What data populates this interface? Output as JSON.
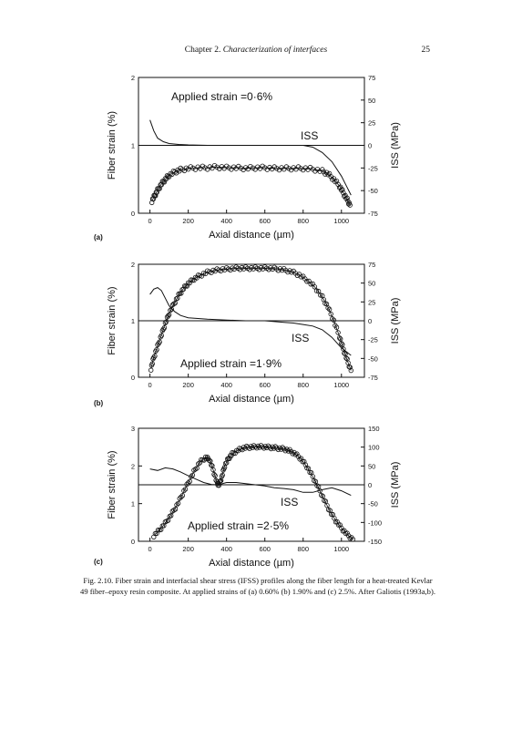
{
  "header": {
    "chapter_prefix": "Chapter 2. ",
    "chapter_title": "Characterization of interfaces",
    "page_number": "25"
  },
  "caption": "Fig. 2.10. Fiber strain and interfacial shear stress (IFSS) profiles along the fiber length for a heat-treated Kevlar 49 fiber–epoxy resin composite. At applied strains of (a) 0.60% (b) 1.90% and (c) 2.5%. After Galiotis (1993a,b).",
  "chart_data": [
    {
      "type": "line",
      "panel_label": "(a)",
      "annotation": "Applied strain =0·6%",
      "iss_label": "ISS",
      "xlabel": "Axial distance (µm)",
      "ylabel": "Fiber strain (%)",
      "y2label": "ISS (MPa)",
      "xlim": [
        -60,
        1120
      ],
      "ylim": [
        0,
        2
      ],
      "y2lim": [
        -75,
        75
      ],
      "x_ticks": [
        "0",
        "200",
        "400",
        "600",
        "800",
        "1000"
      ],
      "y_ticks": [
        "0",
        "1",
        "2"
      ],
      "y2_ticks": [
        "75",
        "50",
        "25",
        "0",
        "-25",
        "-50",
        "-75"
      ],
      "reference_line_y": 1,
      "series": [
        {
          "name": "Fiber strain",
          "style": "markers",
          "x": [
            10,
            25,
            40,
            60,
            80,
            100,
            130,
            160,
            200,
            250,
            300,
            350,
            400,
            450,
            500,
            550,
            600,
            650,
            700,
            750,
            800,
            850,
            900,
            930,
            960,
            990,
            1010,
            1030,
            1045
          ],
          "y": [
            0.18,
            0.26,
            0.34,
            0.43,
            0.5,
            0.56,
            0.61,
            0.64,
            0.66,
            0.67,
            0.67,
            0.68,
            0.67,
            0.67,
            0.66,
            0.67,
            0.67,
            0.66,
            0.66,
            0.66,
            0.66,
            0.65,
            0.62,
            0.58,
            0.5,
            0.4,
            0.3,
            0.2,
            0.12
          ]
        },
        {
          "name": "ISS",
          "style": "line",
          "x": [
            0,
            20,
            40,
            70,
            100,
            150,
            200,
            300,
            400,
            500,
            600,
            700,
            800,
            850,
            900,
            950,
            1000,
            1050
          ],
          "y": [
            28,
            16,
            8,
            4,
            2,
            1,
            0.5,
            0,
            0,
            0,
            0,
            0,
            0,
            -2,
            -8,
            -18,
            -34,
            -55
          ]
        }
      ]
    },
    {
      "type": "line",
      "panel_label": "(b)",
      "annotation": "Applied strain =1·9%",
      "iss_label": "ISS",
      "xlabel": "Axial distance (µm)",
      "ylabel": "Fiber strain (%)",
      "y2label": "ISS (MPa)",
      "xlim": [
        -60,
        1120
      ],
      "ylim": [
        0,
        2
      ],
      "y2lim": [
        -75,
        75
      ],
      "x_ticks": [
        "0",
        "200",
        "400",
        "600",
        "800",
        "1000"
      ],
      "y_ticks": [
        "0",
        "1",
        "2"
      ],
      "y2_ticks": [
        "75",
        "50",
        "25",
        "0",
        "-25",
        "-50",
        "-75"
      ],
      "reference_line_y": 1,
      "series": [
        {
          "name": "Fiber strain",
          "style": "markers",
          "x": [
            5,
            20,
            40,
            60,
            80,
            100,
            125,
            150,
            175,
            200,
            230,
            260,
            300,
            340,
            380,
            420,
            460,
            500,
            540,
            580,
            620,
            660,
            700,
            740,
            780,
            820,
            860,
            900,
            930,
            960,
            990,
            1010,
            1030,
            1050
          ],
          "y": [
            0.15,
            0.35,
            0.55,
            0.75,
            0.95,
            1.13,
            1.3,
            1.45,
            1.57,
            1.66,
            1.74,
            1.8,
            1.86,
            1.89,
            1.91,
            1.92,
            1.93,
            1.93,
            1.93,
            1.93,
            1.93,
            1.92,
            1.9,
            1.87,
            1.81,
            1.72,
            1.6,
            1.42,
            1.24,
            1.0,
            0.72,
            0.5,
            0.3,
            0.12
          ]
        },
        {
          "name": "ISS",
          "style": "line",
          "x": [
            0,
            20,
            40,
            60,
            80,
            100,
            130,
            160,
            200,
            250,
            300,
            400,
            500,
            600,
            700,
            750,
            800,
            850,
            900,
            950,
            1000,
            1050
          ],
          "y": [
            35,
            42,
            44,
            40,
            30,
            20,
            12,
            7,
            4,
            3,
            2,
            1,
            0,
            0,
            -2,
            -3,
            -5,
            -7,
            -12,
            -22,
            -36,
            -46
          ]
        }
      ]
    },
    {
      "type": "line",
      "panel_label": "(c)",
      "annotation": "Applied strain =2·5%",
      "iss_label": "ISS",
      "xlabel": "Axial distance (µm)",
      "ylabel": "Fiber strain (%)",
      "y2label": "ISS (MPa)",
      "xlim": [
        -60,
        1120
      ],
      "ylim": [
        0,
        3
      ],
      "y2lim": [
        -150,
        150
      ],
      "x_ticks": [
        "0",
        "200",
        "400",
        "600",
        "800",
        "1000"
      ],
      "y_ticks": [
        "0",
        "1",
        "2",
        "3"
      ],
      "y2_ticks": [
        "150",
        "100",
        "50",
        "0",
        "-50",
        "-100",
        "-150"
      ],
      "reference_line_y": 1.5,
      "series": [
        {
          "name": "Fiber strain",
          "style": "markers",
          "x": [
            20,
            50,
            80,
            110,
            140,
            170,
            200,
            230,
            260,
            290,
            310,
            330,
            350,
            360,
            375,
            390,
            410,
            430,
            460,
            490,
            520,
            550,
            580,
            610,
            640,
            670,
            700,
            730,
            760,
            790,
            820,
            850,
            880,
            910,
            940,
            970,
            1000,
            1030,
            1060
          ],
          "y": [
            0.15,
            0.3,
            0.48,
            0.7,
            0.95,
            1.25,
            1.55,
            1.85,
            2.1,
            2.22,
            2.18,
            1.9,
            1.55,
            1.5,
            1.7,
            2.0,
            2.2,
            2.32,
            2.42,
            2.48,
            2.5,
            2.51,
            2.51,
            2.5,
            2.49,
            2.47,
            2.45,
            2.4,
            2.32,
            2.18,
            1.98,
            1.72,
            1.42,
            1.1,
            0.8,
            0.55,
            0.35,
            0.18,
            0.05
          ]
        },
        {
          "name": "ISS",
          "style": "line",
          "x": [
            0,
            40,
            80,
            120,
            160,
            200,
            240,
            280,
            320,
            350,
            370,
            400,
            450,
            500,
            550,
            600,
            650,
            700,
            750,
            800,
            850,
            900,
            950,
            1000,
            1050
          ],
          "y": [
            42,
            38,
            45,
            42,
            34,
            24,
            15,
            6,
            1,
            0,
            2,
            6,
            6,
            3,
            0,
            -3,
            -8,
            -10,
            -13,
            -20,
            -20,
            -13,
            -8,
            -16,
            -28
          ]
        }
      ]
    }
  ]
}
